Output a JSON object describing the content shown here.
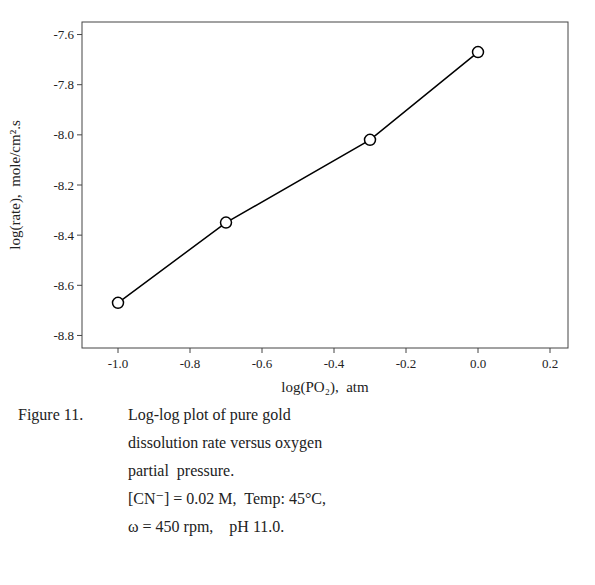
{
  "chart_data": {
    "type": "line",
    "xlabel": "log(PO₂),  atm",
    "ylabel": "log(rate),  mole/cm².s",
    "x": [
      -1.0,
      -0.7,
      -0.3,
      0.0
    ],
    "values": [
      -8.67,
      -8.35,
      -8.02,
      -7.67
    ],
    "xlim": [
      -1.1,
      0.25
    ],
    "ylim": [
      -8.85,
      -7.55
    ],
    "xticks": [
      {
        "value": -1.0,
        "label": "-1.0"
      },
      -0.8,
      -0.6,
      -0.4,
      -0.2,
      {
        "value": 0.0,
        "label": "0.0"
      },
      0.2
    ],
    "yticks": [
      -8.8,
      -8.6,
      -8.4,
      -8.2,
      {
        "value": -8.0,
        "label": "-8.0"
      },
      -7.8,
      -7.6
    ],
    "color": "#000000",
    "marker": "circle",
    "grid": false,
    "annotations": [
      "Figure 11.",
      "Log-log plot of pure gold",
      "dissolution rate versus oxygen",
      "partial  pressure.",
      "[CN⁻] = 0.02 M,  Temp: 45°C,",
      "ω = 450 rpm,    pH 11.0."
    ]
  }
}
